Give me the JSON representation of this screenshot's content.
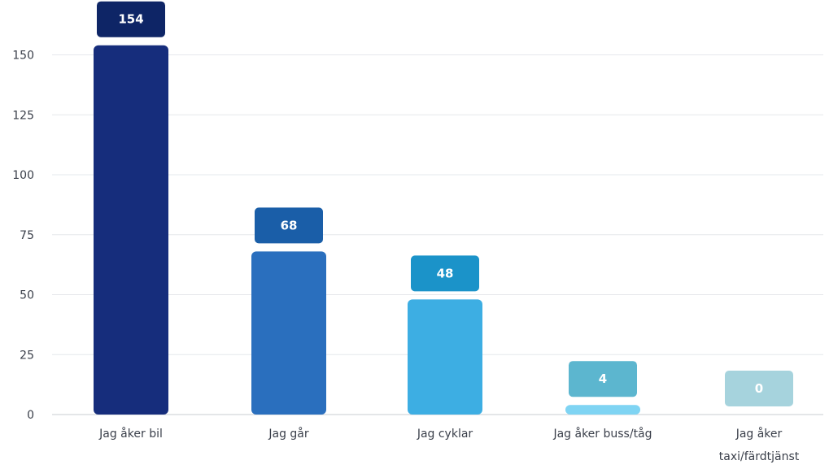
{
  "chart_data": {
    "type": "bar",
    "categories": [
      [
        "Jag åker bil"
      ],
      [
        "Jag går"
      ],
      [
        "Jag cyklar"
      ],
      [
        "Jag åker buss/tåg"
      ],
      [
        "Jag åker",
        "taxi/färdtjänst"
      ]
    ],
    "values": [
      154,
      68,
      48,
      4,
      0
    ],
    "bar_colors": [
      "#162d7c",
      "#2a6fbe",
      "#3daee3",
      "#7fd4f3",
      "#cfe9ef"
    ],
    "label_colors": [
      "#0e2566",
      "#1a5ea8",
      "#1b93c9",
      "#5cb6cf",
      "#a6d3dd"
    ],
    "ylim": [
      0,
      160
    ],
    "yticks": [
      0,
      25,
      50,
      75,
      100,
      125,
      150
    ],
    "grid": true,
    "title": "",
    "xlabel": "",
    "ylabel": ""
  }
}
